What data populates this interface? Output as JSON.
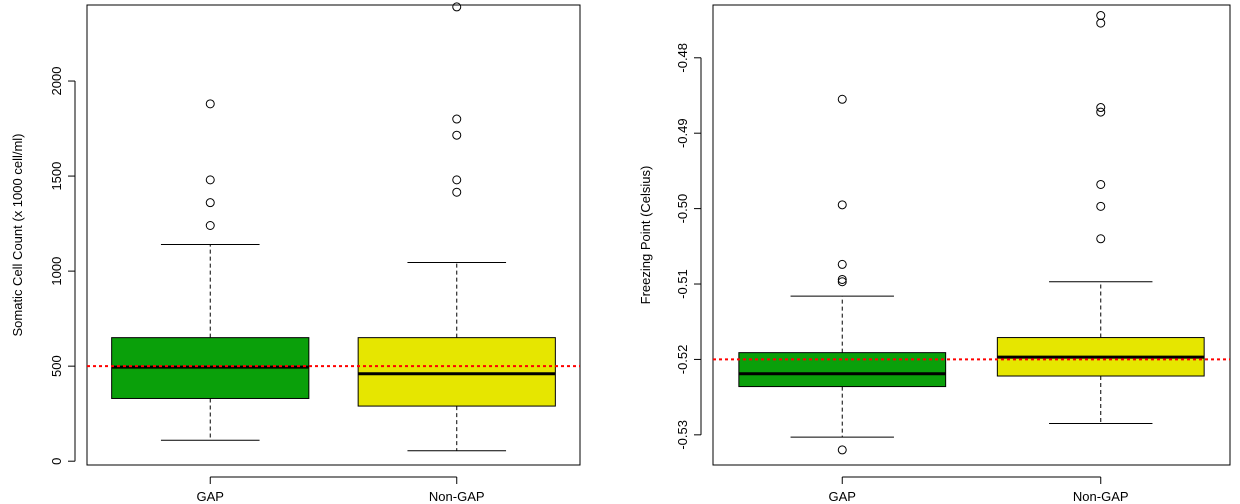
{
  "chart_data": [
    {
      "type": "boxplot",
      "title": "",
      "xlabel": "",
      "ylabel": "Somatic Cell Count (x 1000 cell/ml)",
      "categories": [
        "GAP",
        "Non-GAP"
      ],
      "ylim": [
        -20,
        2400
      ],
      "yticks": [
        0,
        500,
        1000,
        1500,
        2000
      ],
      "reference_line": {
        "y": 500,
        "color": "#ff0000",
        "style": "dotted"
      },
      "boxes": [
        {
          "category": "GAP",
          "color": "#0aa00a",
          "whisker_low": 110,
          "q1": 330,
          "median": 495,
          "q3": 650,
          "whisker_high": 1140,
          "outliers": [
            1240,
            1360,
            1480,
            1880
          ]
        },
        {
          "category": "Non-GAP",
          "color": "#e6e600",
          "whisker_low": 55,
          "q1": 290,
          "median": 460,
          "q3": 650,
          "whisker_high": 1045,
          "outliers": [
            1415,
            1480,
            1715,
            1800,
            2390
          ]
        }
      ],
      "grid": false
    },
    {
      "type": "boxplot",
      "title": "",
      "xlabel": "",
      "ylabel": "Freezing Point (Celsius)",
      "categories": [
        "GAP",
        "Non-GAP"
      ],
      "ylim": [
        -0.534,
        -0.473
      ],
      "yticks": [
        -0.53,
        -0.52,
        -0.51,
        -0.5,
        -0.49,
        -0.48
      ],
      "ytick_labels": [
        "-0.53",
        "-0.52",
        "-0.51",
        "-0.50",
        "-0.49",
        "-0.48"
      ],
      "reference_line": {
        "y": -0.52,
        "color": "#ff0000",
        "style": "dotted"
      },
      "boxes": [
        {
          "category": "GAP",
          "color": "#0aa00a",
          "whisker_low": -0.5303,
          "q1": -0.5236,
          "median": -0.5219,
          "q3": -0.5191,
          "whisker_high": -0.5116,
          "outliers": [
            -0.532,
            -0.5097,
            -0.5094,
            -0.5074,
            -0.4995,
            -0.4855
          ]
        },
        {
          "category": "Non-GAP",
          "color": "#e6e600",
          "whisker_low": -0.5285,
          "q1": -0.5222,
          "median": -0.5197,
          "q3": -0.5171,
          "whisker_high": -0.5097,
          "outliers": [
            -0.504,
            -0.4997,
            -0.4968,
            -0.4872,
            -0.4866,
            -0.4754,
            -0.4744
          ]
        }
      ],
      "grid": false
    }
  ]
}
